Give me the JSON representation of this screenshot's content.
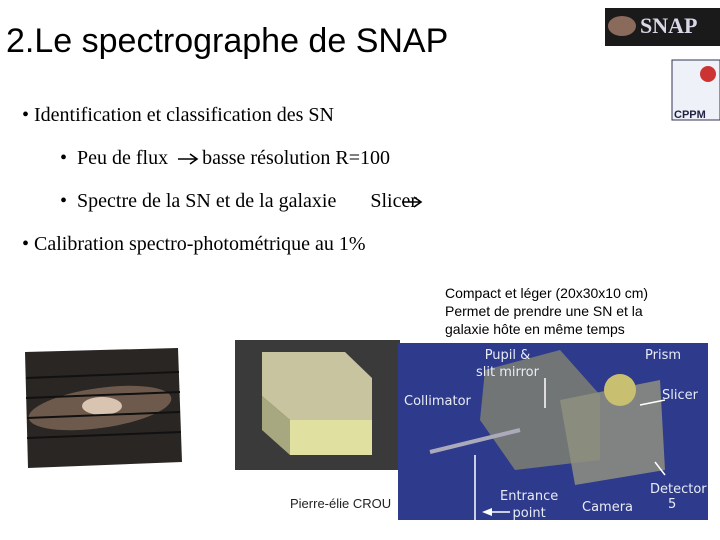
{
  "header": {
    "title": "2.Le spectrographe de SNAP",
    "logos": [
      "SNAP",
      "CPPM"
    ]
  },
  "bullets": [
    {
      "text": "Identification et classification des SN"
    },
    {
      "before": "Peu de flux",
      "after": "basse résolution R=100"
    },
    {
      "before": "Spectre de la SN et de la galaxie",
      "after": "Slicer"
    },
    {
      "text": "Calibration spectro-photométrique au 1%"
    }
  ],
  "caption": [
    "Compact et léger (20x30x10 cm)",
    "Permet de prendre une SN et la",
    "galaxie hôte en même temps"
  ],
  "figure_labels": {
    "pupil": [
      "Pupil &",
      "slit mirror"
    ],
    "prism": "Prism",
    "slicer": "Slicer",
    "collimator": "Collimator",
    "entrance": [
      "Entrance",
      "point"
    ],
    "camera": "Camera",
    "detector": "Detector"
  },
  "footer": {
    "author": "Pierre-élie CROU",
    "page_number": "5"
  }
}
